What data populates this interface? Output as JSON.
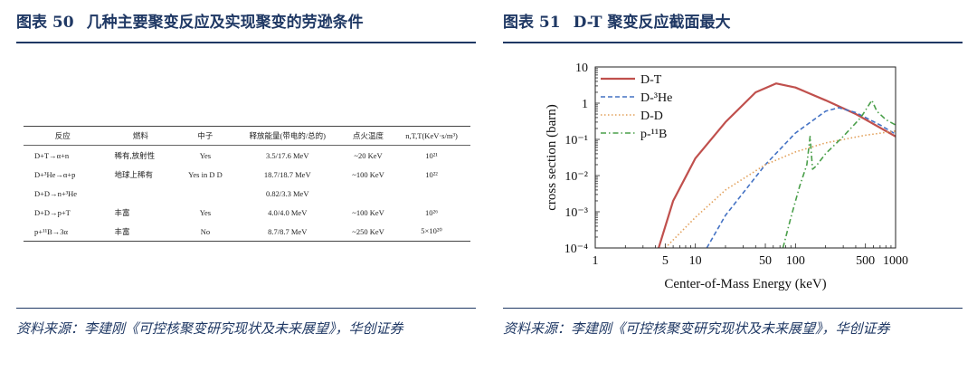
{
  "left": {
    "fig_label": "图表 50",
    "fig_title": "几种主要聚变反应及实现聚变的劳逊条件",
    "table": {
      "headers": [
        "反应",
        "燃料",
        "中子",
        "释放能量(带电的/总的)",
        "点火温度",
        "n,T,T(KeV·s/m³)"
      ],
      "rows": [
        [
          "D+T→α+n",
          "稀有,放射性",
          "Yes",
          "3.5/17.6 MeV",
          "~20 KeV",
          "10²¹"
        ],
        [
          "D+³He→α+p",
          "地球上稀有",
          "Yes in D D",
          "18.7/18.7 MeV",
          "~100 KeV",
          "10²²"
        ],
        [
          "D+D→n+³He",
          "",
          "",
          "0.82/3.3 MeV",
          "",
          ""
        ],
        [
          "D+D→p+T",
          "丰富",
          "Yes",
          "4.0/4.0 MeV",
          "~100 KeV",
          "10²⁶"
        ],
        [
          "p+¹¹B→3α",
          "丰富",
          "No",
          "8.7/8.7 MeV",
          "~250 KeV",
          "5×10²⁰"
        ]
      ]
    },
    "source": "资料来源：李建刚《可控核聚变研究现状及未来展望》，华创证券"
  },
  "right": {
    "fig_label": "图表 51",
    "fig_title": "D-T 聚变反应截面最大",
    "source": "资料来源：李建刚《可控核聚变研究现状及未来展望》，华创证券"
  },
  "chart_data": {
    "type": "line",
    "xlabel": "Center-of-Mass Energy (keV)",
    "ylabel": "cross section (barn)",
    "x_scale": "log",
    "y_scale": "log",
    "xlim": [
      1,
      1000
    ],
    "ylim": [
      0.0001,
      10
    ],
    "x_ticks": [
      {
        "v": 1,
        "label": "1"
      },
      {
        "v": 5,
        "label": "5"
      },
      {
        "v": 10,
        "label": "10"
      },
      {
        "v": 50,
        "label": "50"
      },
      {
        "v": 100,
        "label": "100"
      },
      {
        "v": 500,
        "label": "500"
      },
      {
        "v": 1000,
        "label": "1000"
      }
    ],
    "y_ticks": [
      {
        "v": 10,
        "label": "10"
      },
      {
        "v": 1,
        "label": "1"
      },
      {
        "v": 0.1,
        "label": "10⁻¹"
      },
      {
        "v": 0.01,
        "label": "10⁻²"
      },
      {
        "v": 0.001,
        "label": "10⁻³"
      },
      {
        "v": 0.0001,
        "label": "10⁻⁴"
      }
    ],
    "legend_position": "top-left",
    "series": [
      {
        "name": "D-T",
        "color": "#c0504d",
        "dash": "solid",
        "x": [
          4.3,
          6,
          10,
          20,
          40,
          64,
          100,
          200,
          400,
          1000
        ],
        "y": [
          0.0001,
          0.002,
          0.03,
          0.3,
          2.0,
          3.5,
          2.7,
          1.2,
          0.5,
          0.12
        ]
      },
      {
        "name": "D-³He",
        "color": "#4472c4",
        "dash": "dash",
        "x": [
          13,
          20,
          50,
          100,
          200,
          270,
          400,
          700,
          1000
        ],
        "y": [
          0.0001,
          0.0008,
          0.02,
          0.15,
          0.6,
          0.75,
          0.55,
          0.25,
          0.14
        ]
      },
      {
        "name": "D-D",
        "color": "#e2a05a",
        "dash": "dot",
        "x": [
          5,
          10,
          20,
          50,
          100,
          200,
          500,
          1000
        ],
        "y": [
          0.0001,
          0.0007,
          0.004,
          0.02,
          0.045,
          0.08,
          0.13,
          0.17
        ]
      },
      {
        "name": "p-¹¹B",
        "color": "#4a9f4a",
        "dash": "dashdot",
        "x": [
          75,
          90,
          110,
          130,
          140,
          148,
          160,
          200,
          300,
          450,
          580,
          650,
          800,
          1000
        ],
        "y": [
          0.0001,
          0.0007,
          0.005,
          0.02,
          0.12,
          0.015,
          0.018,
          0.04,
          0.12,
          0.4,
          1.2,
          0.6,
          0.35,
          0.25
        ]
      }
    ]
  }
}
